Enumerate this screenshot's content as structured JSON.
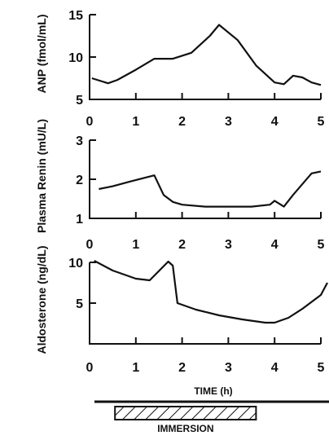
{
  "chart_data": [
    {
      "type": "line",
      "ylabel": "ANP (fmol/mL)",
      "xlim": [
        0,
        5
      ],
      "ylim": [
        5,
        15
      ],
      "yticks": [
        5,
        10,
        15
      ],
      "xticks": [
        0,
        1,
        2,
        3,
        4,
        5
      ],
      "series": [
        {
          "x": [
            0.05,
            0.4,
            0.6,
            1.0,
            1.4,
            1.8,
            2.2,
            2.6,
            2.8,
            3.2,
            3.6,
            4.0,
            4.2,
            4.4,
            4.6,
            4.8,
            5.0
          ],
          "y": [
            7.5,
            6.9,
            7.3,
            8.5,
            9.8,
            9.8,
            10.5,
            12.5,
            13.8,
            12.0,
            9.0,
            7.0,
            6.8,
            7.8,
            7.6,
            7.0,
            6.7
          ]
        }
      ]
    },
    {
      "type": "line",
      "ylabel": "Plasma Renin (mU/L)",
      "xlim": [
        0,
        5
      ],
      "ylim": [
        1,
        3
      ],
      "yticks": [
        1,
        2,
        3
      ],
      "xticks": [
        0,
        1,
        2,
        3,
        4,
        5
      ],
      "series": [
        {
          "x": [
            0.2,
            0.5,
            0.9,
            1.4,
            1.6,
            1.8,
            2.0,
            2.5,
            3.0,
            3.5,
            3.9,
            4.0,
            4.2,
            4.4,
            4.8,
            5.0
          ],
          "y": [
            1.75,
            1.82,
            1.95,
            2.1,
            1.6,
            1.42,
            1.35,
            1.3,
            1.3,
            1.3,
            1.35,
            1.45,
            1.3,
            1.6,
            2.15,
            2.2
          ]
        }
      ]
    },
    {
      "type": "line",
      "ylabel": "Aldosterone (ng/dL)",
      "xlim": [
        0,
        5
      ],
      "ylim": [
        0,
        10
      ],
      "yticks": [
        5,
        10
      ],
      "xticks": [
        0,
        1,
        2,
        3,
        4,
        5
      ],
      "xlabel": "TIME (h)",
      "series": [
        {
          "x": [
            0.1,
            0.5,
            1.0,
            1.3,
            1.7,
            1.8,
            1.9,
            2.3,
            2.8,
            3.3,
            3.8,
            4.0,
            4.3,
            4.6,
            5.0,
            5.2
          ],
          "y": [
            10.2,
            9.0,
            8.0,
            7.8,
            10.1,
            9.6,
            5.0,
            4.2,
            3.5,
            3.0,
            2.6,
            2.6,
            3.2,
            4.3,
            6.0,
            7.5
          ]
        }
      ]
    }
  ],
  "immersion_bar": {
    "label": "IMMERSION",
    "start": 0.55,
    "end": 3.6
  }
}
